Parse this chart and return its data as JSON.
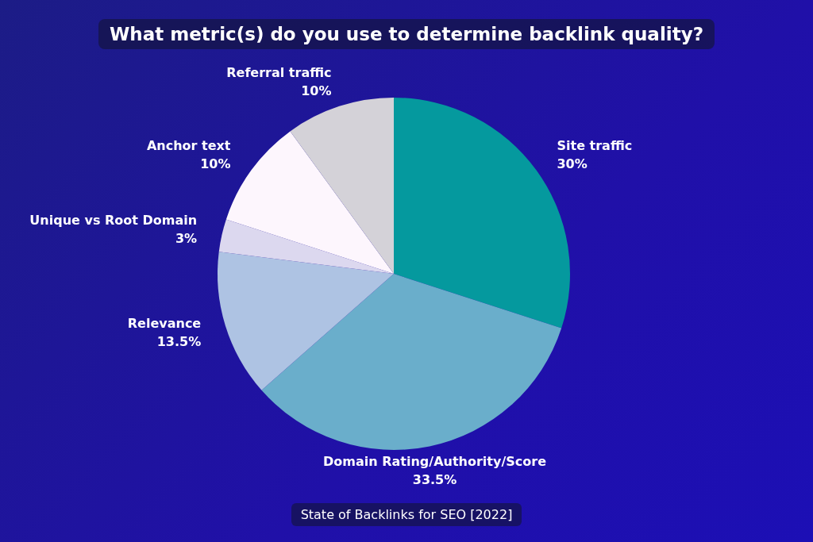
{
  "chart_data": {
    "type": "pie",
    "title": "What metric(s) do you use to determine backlink quality?",
    "categories": [
      "Site traffic",
      "Domain Rating/Authority/Score",
      "Relevance",
      "Unique vs Root Domain",
      "Anchor text",
      "Referral traffic"
    ],
    "values": [
      30,
      33.5,
      13.5,
      3,
      10,
      10
    ],
    "colors": [
      "#05999e",
      "#6aaecb",
      "#aec3e3",
      "#dcd8ef",
      "#fdf6fd",
      "#d4d2d8"
    ],
    "value_labels": [
      "30%",
      "33.5%",
      "13.5%",
      "3%",
      "10%",
      "10%"
    ],
    "legend": false,
    "annotations": [
      "State of Backlinks for SEO [2022]"
    ]
  }
}
